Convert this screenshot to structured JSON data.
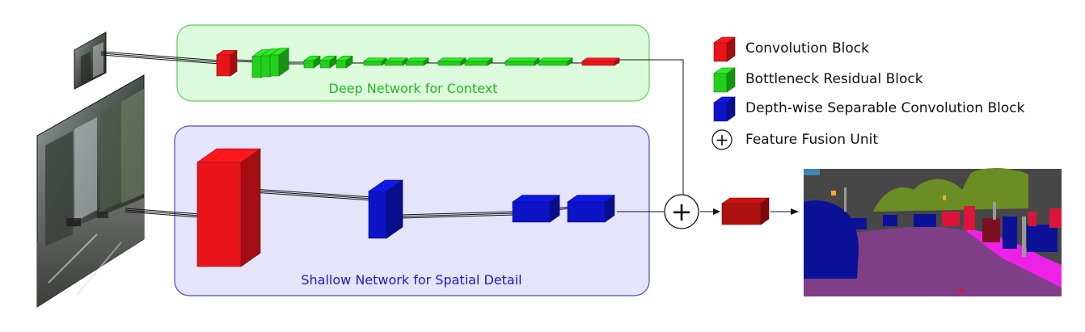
{
  "colors": {
    "convolution": "#e8141a",
    "bottleneck": "#22d01c",
    "depthwise": "#0d14c8",
    "fusion_output": "#b01010",
    "deep_panel_fill": "#dcfadc",
    "deep_panel_stroke": "#5fcf5f",
    "deep_panel_text": "#26b526",
    "shallow_panel_fill": "#e4e4fb",
    "shallow_panel_stroke": "#4a4ad8",
    "shallow_panel_text": "#1c1cc8",
    "road": "#7f3f86",
    "sidewalk": "#ee22e6",
    "car": "#0b1298",
    "vegetation": "#6a8e23",
    "building": "#474747",
    "person": "#dc143c"
  },
  "panels": {
    "deep": {
      "label": "Deep Network for Context"
    },
    "shallow": {
      "label": "Shallow Network for Spatial Detail"
    }
  },
  "legend": {
    "items": [
      {
        "icon": "convolution-block-icon",
        "label": "Convolution Block"
      },
      {
        "icon": "bottleneck-block-icon",
        "label": "Bottleneck Residual Block"
      },
      {
        "icon": "depthwise-block-icon",
        "label": "Depth-wise Separable Convolution Block"
      },
      {
        "icon": "fusion-unit-icon",
        "label": "Feature Fusion Unit"
      }
    ]
  },
  "fusion_symbol": "+",
  "images": {
    "input_small": "street-scene-input-small",
    "input_large": "street-scene-input-full",
    "output": "semantic-segmentation-output"
  }
}
